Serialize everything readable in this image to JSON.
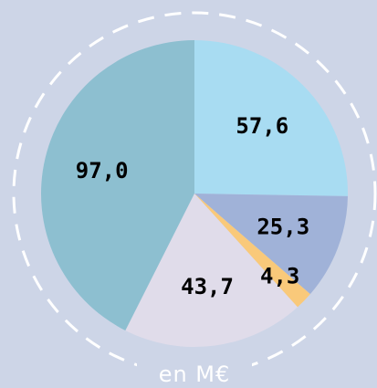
{
  "chart_data": {
    "type": "pie",
    "categories": [
      null,
      null,
      null,
      null,
      null
    ],
    "values": [
      57.6,
      25.3,
      4.3,
      43.7,
      97.0
    ],
    "value_labels": [
      "57,6",
      "25,3",
      "4,3",
      "43,7",
      "97,0"
    ],
    "colors": [
      "#a8dcf2",
      "#a0b2d8",
      "#f9c97a",
      "#e0dcea",
      "#8dbfd0"
    ],
    "caption": "en M€"
  }
}
